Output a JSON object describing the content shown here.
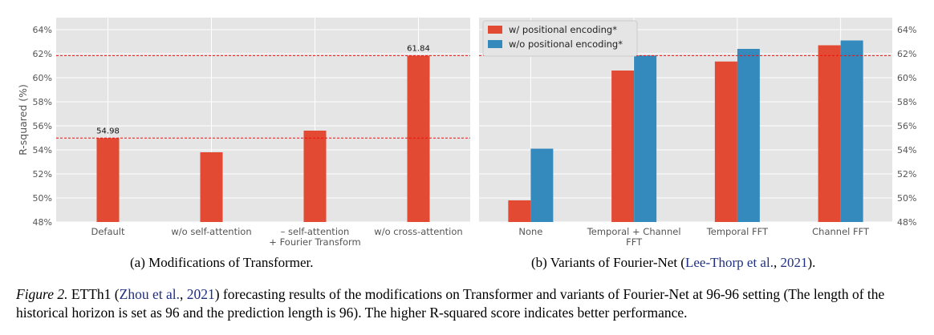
{
  "chart_data": [
    {
      "type": "bar",
      "panel": "a",
      "ylabel": "R-squared (%)",
      "ylim": [
        48,
        65
      ],
      "yticks": [
        "48%",
        "50%",
        "52%",
        "54%",
        "56%",
        "58%",
        "60%",
        "62%",
        "64%"
      ],
      "ytick_values": [
        48,
        50,
        52,
        54,
        56,
        58,
        60,
        62,
        64
      ],
      "categories": [
        "Default",
        "w/o self-attention",
        "– self-attention + Fourier Transform",
        "w/o cross-attention"
      ],
      "category_lines": [
        [
          "Default"
        ],
        [
          "w/o self-attention"
        ],
        [
          "– self-attention",
          "+ Fourier Transform"
        ],
        [
          "w/o cross-attention"
        ]
      ],
      "values": [
        54.98,
        53.8,
        55.6,
        61.84
      ],
      "annotations": [
        {
          "index": 0,
          "text": "54.98"
        },
        {
          "index": 3,
          "text": "61.84"
        }
      ],
      "reference_lines": [
        54.98,
        61.84
      ],
      "color": "#e24a33",
      "grid": true
    },
    {
      "type": "bar",
      "panel": "b",
      "ylim": [
        48,
        65
      ],
      "yticks": [
        "48%",
        "50%",
        "52%",
        "54%",
        "56%",
        "58%",
        "60%",
        "62%",
        "64%"
      ],
      "ytick_values": [
        48,
        50,
        52,
        54,
        56,
        58,
        60,
        62,
        64
      ],
      "y_axis_side": "right",
      "categories": [
        "None",
        "Temporal + Channel FFT",
        "Temporal FFT",
        "Channel FFT"
      ],
      "category_lines": [
        [
          "None"
        ],
        [
          "Temporal + Channel",
          "FFT"
        ],
        [
          "Temporal FFT"
        ],
        [
          "Channel FFT"
        ]
      ],
      "series": [
        {
          "name": "w/ positional encoding*",
          "color": "#e24a33",
          "values": [
            49.8,
            60.6,
            61.35,
            62.7
          ]
        },
        {
          "name": "w/o positional encoding*",
          "color": "#348abd",
          "values": [
            54.1,
            61.85,
            62.4,
            63.1
          ]
        }
      ],
      "reference_lines": [
        61.84
      ],
      "legend": "top-left",
      "grid": true
    }
  ],
  "subcaptions": {
    "a": "(a)  Modifications of Transformer.",
    "b_prefix": "(b)  Variants of Fourier-Net (",
    "b_cite_author": "Lee-Thorp et al.",
    "b_sep": ", ",
    "b_cite_year": "2021",
    "b_suffix": ")."
  },
  "caption": {
    "fig_label": "Figure 2.",
    "dataset": " ETTh1 (",
    "cite_author": "Zhou et al.",
    "cite_sep": ", ",
    "cite_year": "2021",
    "text": ") forecasting results of the modifications on Transformer and variants of Fourier-Net at 96-96 setting (The length of the historical horizon is set as 96 and the prediction length is 96). The higher R-squared score indicates better performance."
  }
}
